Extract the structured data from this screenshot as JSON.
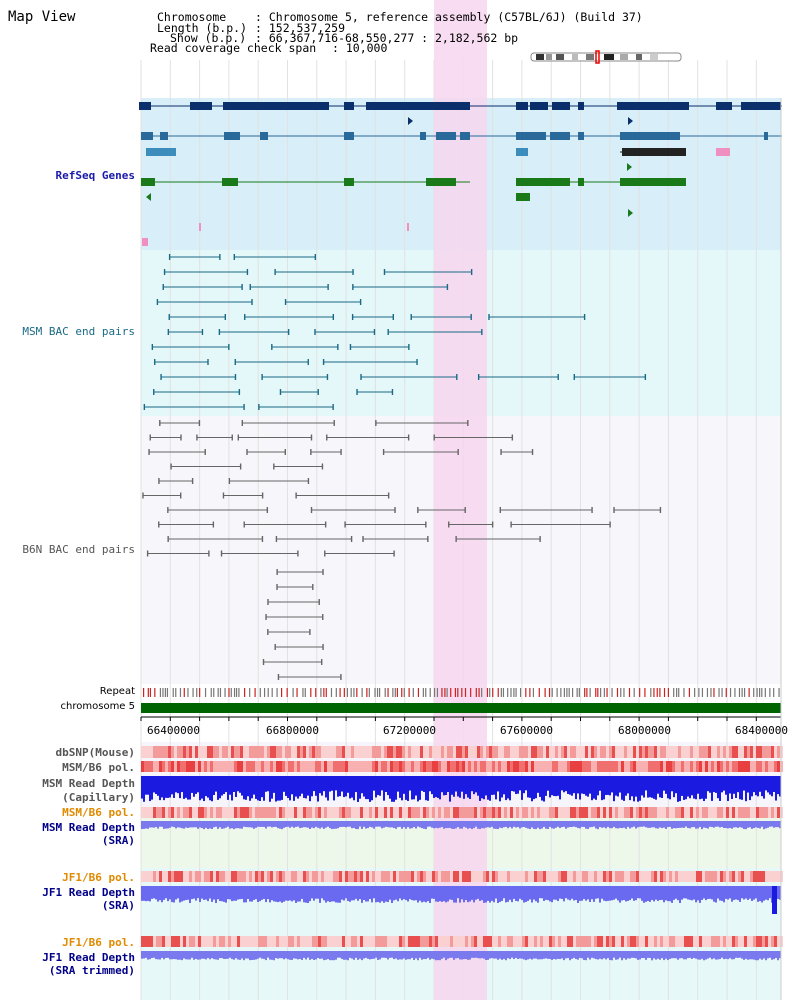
{
  "title": "Map View",
  "header": {
    "chromosome_key": "Chromosome",
    "chromosome_value": ": Chromosome 5, reference assembly (C57BL/6J) (Build 37)",
    "length_key": "Length (b.p.)",
    "length_value": ": 152,537,259",
    "show_key": "Show (b.p.)",
    "show_value": ": 66,367,716-68,550,277 : 2,182,562 bp",
    "coverage_key": "Read coverage check span",
    "coverage_value": ": 10,000"
  },
  "tracks": {
    "refseq": "RefSeq Genes",
    "msm_bac": "MSM BAC end pairs",
    "b6n_bac": "B6N BAC end pairs",
    "repeat": "Repeat",
    "chromosome": "chromosome 5",
    "dbsnp": "dbSNP(Mouse)",
    "msm_b6_pol_1": "MSM/B6 pol.",
    "msm_depth_cap_1": "MSM Read Depth",
    "msm_depth_cap_2": "(Capillary)",
    "msm_b6_pol_2": "MSM/B6 pol.",
    "msm_depth_sra_1": "MSM Read Depth",
    "msm_depth_sra_2": "(SRA)",
    "jf1_pol_1": "JF1/B6 pol.",
    "jf1_depth_sra_1": "JF1 Read Depth",
    "jf1_depth_sra_2": "(SRA)",
    "jf1_pol_2": "JF1/B6 pol.",
    "jf1_depth_trim_1": "JF1 Read Depth",
    "jf1_depth_trim_2": "(SRA trimmed)"
  },
  "axis_ticks": [
    "66400000",
    "66800000",
    "67200000",
    "67600000",
    "68000000",
    "68400000"
  ],
  "colors": {
    "refseq_label": "#1a1aaa",
    "msm_bac_label": "#1a6a86",
    "b6n_bac_label": "#555555",
    "msm_pol_label": "#e08a00",
    "depth_label": "#000088",
    "refseq_bg": "#d8eef8",
    "msm_bg": "#e4f7f9",
    "b6n_bg": "#f6f6fb",
    "highlight": "#f7d6ef",
    "chromosome_bar": "#006400"
  }
}
